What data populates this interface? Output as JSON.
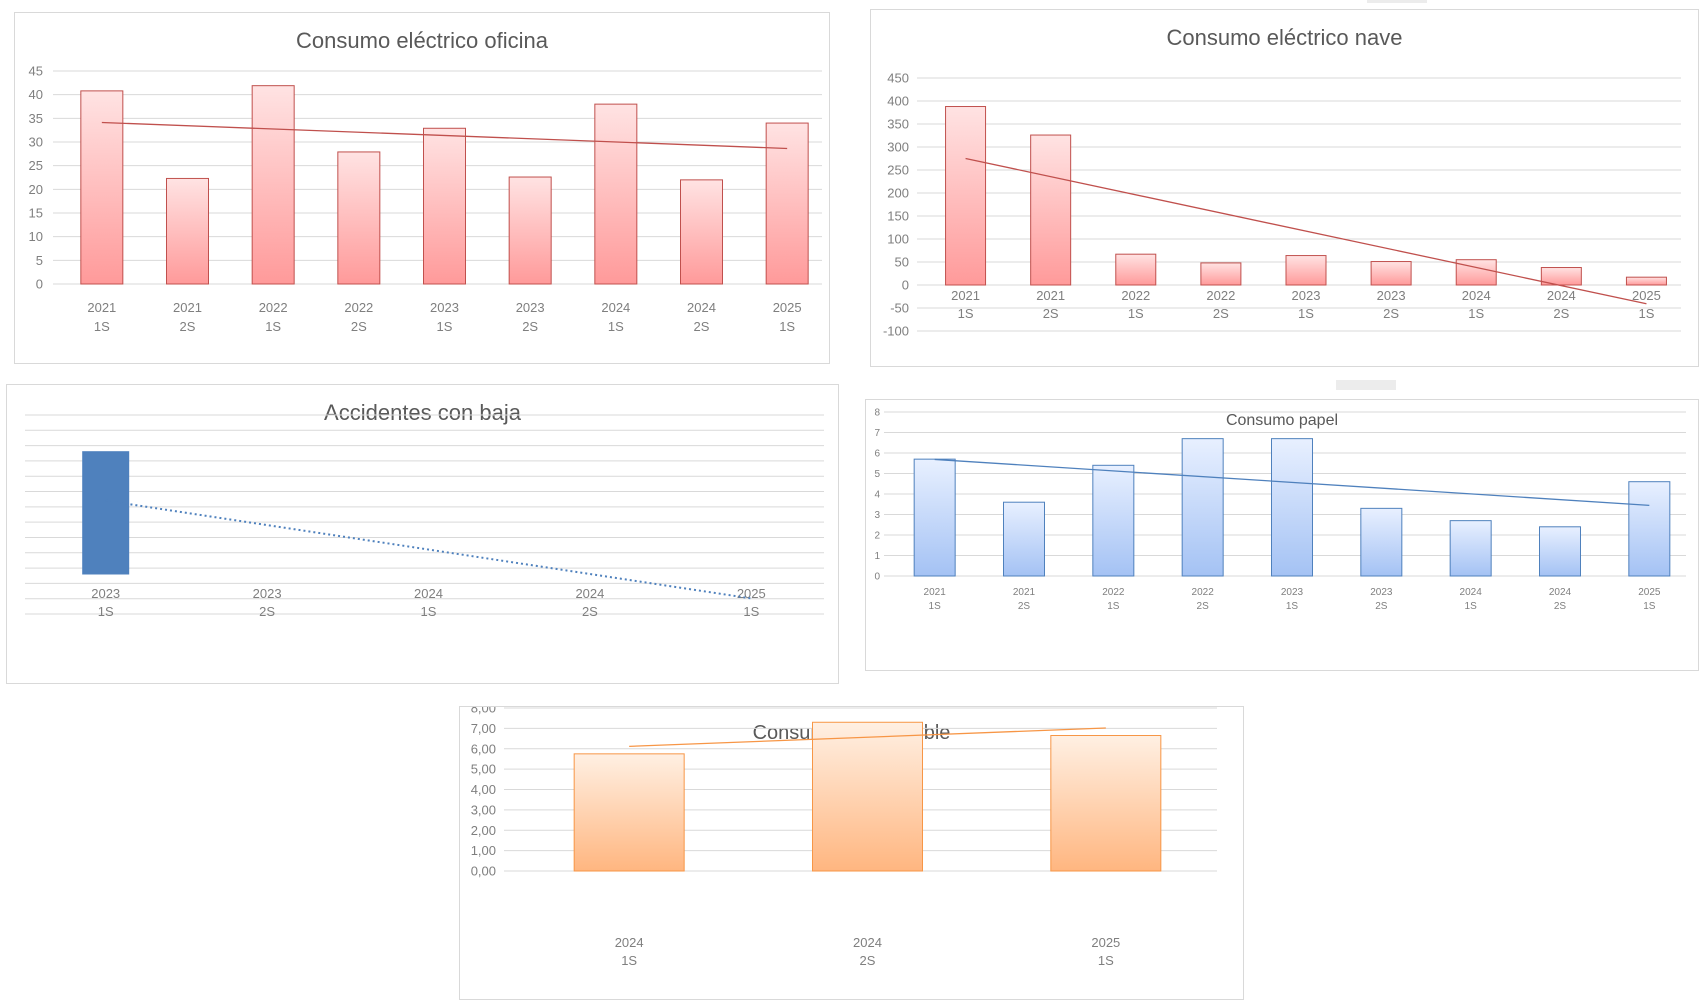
{
  "chart_data": [
    {
      "id": "oficina",
      "type": "bar",
      "title": "Consumo eléctrico oficina",
      "categories": [
        [
          "2021",
          "1S"
        ],
        [
          "2021",
          "2S"
        ],
        [
          "2022",
          "1S"
        ],
        [
          "2022",
          "2S"
        ],
        [
          "2023",
          "1S"
        ],
        [
          "2023",
          "2S"
        ],
        [
          "2024",
          "1S"
        ],
        [
          "2024",
          "2S"
        ],
        [
          "2025",
          "1S"
        ]
      ],
      "values": [
        40.8,
        22.3,
        41.9,
        27.9,
        32.9,
        22.6,
        38.0,
        22.0,
        34.0
      ],
      "ylim": [
        0,
        45
      ],
      "yticks": [
        "0",
        "5",
        "10",
        "15",
        "20",
        "25",
        "30",
        "35",
        "40",
        "45"
      ],
      "trendline": "linear",
      "colors": {
        "bar_top": "#ffe3e3",
        "bar_bottom": "#ff9a9a",
        "bar_border": "#c0504d",
        "trend": "#c0504d"
      }
    },
    {
      "id": "nave",
      "type": "bar",
      "title": "Consumo eléctrico nave",
      "categories": [
        [
          "2021",
          "1S"
        ],
        [
          "2021",
          "2S"
        ],
        [
          "2022",
          "1S"
        ],
        [
          "2022",
          "2S"
        ],
        [
          "2023",
          "1S"
        ],
        [
          "2023",
          "2S"
        ],
        [
          "2024",
          "1S"
        ],
        [
          "2024",
          "2S"
        ],
        [
          "2025",
          "1S"
        ]
      ],
      "values": [
        388,
        326,
        67,
        48,
        64,
        51,
        55,
        38,
        17
      ],
      "ylim": [
        -100,
        450
      ],
      "yticks": [
        "-100",
        "-50",
        "0",
        "50",
        "100",
        "150",
        "200",
        "250",
        "300",
        "350",
        "400",
        "450"
      ],
      "trendline": "linear",
      "colors": {
        "bar_top": "#ffe3e3",
        "bar_bottom": "#ff9a9a",
        "bar_border": "#c0504d",
        "trend": "#c0504d"
      }
    },
    {
      "id": "accidentes",
      "type": "bar",
      "title": "Accidentes con baja",
      "categories": [
        [
          "2023",
          "1S"
        ],
        [
          "2023",
          "2S"
        ],
        [
          "2024",
          "1S"
        ],
        [
          "2024",
          "2S"
        ],
        [
          "2025",
          "1S"
        ]
      ],
      "values": [
        1,
        0,
        0,
        0,
        0
      ],
      "ylim": [
        0,
        1.3
      ],
      "yticks": [],
      "gridlines": 13,
      "trendline": "linear-dotted",
      "colors": {
        "bar_top": "#4f81bd",
        "bar_bottom": "#4f81bd",
        "bar_border": "#4f81bd",
        "trend": "#4f81bd"
      }
    },
    {
      "id": "papel",
      "type": "bar",
      "title": "Consumo papel",
      "categories": [
        [
          "2021",
          "1S"
        ],
        [
          "2021",
          "2S"
        ],
        [
          "2022",
          "1S"
        ],
        [
          "2022",
          "2S"
        ],
        [
          "2023",
          "1S"
        ],
        [
          "2023",
          "2S"
        ],
        [
          "2024",
          "1S"
        ],
        [
          "2024",
          "2S"
        ],
        [
          "2025",
          "1S"
        ]
      ],
      "values": [
        5.7,
        3.6,
        5.4,
        6.7,
        6.7,
        3.3,
        2.7,
        2.4,
        4.6
      ],
      "ylim": [
        0,
        8
      ],
      "yticks": [
        "0",
        "1",
        "2",
        "3",
        "4",
        "5",
        "6",
        "7",
        "8"
      ],
      "trendline": "linear",
      "colors": {
        "bar_top": "#e8f0ff",
        "bar_bottom": "#a4c2f4",
        "bar_border": "#4f81bd",
        "trend": "#4f81bd"
      }
    },
    {
      "id": "combustible",
      "type": "bar",
      "title": "Consumo combustible",
      "categories": [
        [
          "2024",
          "1S"
        ],
        [
          "2024",
          "2S"
        ],
        [
          "2025",
          "1S"
        ]
      ],
      "values": [
        5.75,
        7.3,
        6.65
      ],
      "ylim": [
        0,
        8
      ],
      "yticks": [
        "0,00",
        "1,00",
        "2,00",
        "3,00",
        "4,00",
        "5,00",
        "6,00",
        "7,00",
        "8,00"
      ],
      "trendline": "linear",
      "colors": {
        "bar_top": "#fff0e3",
        "bar_bottom": "#ffb680",
        "bar_border": "#f79646",
        "trend": "#f79646"
      }
    }
  ]
}
